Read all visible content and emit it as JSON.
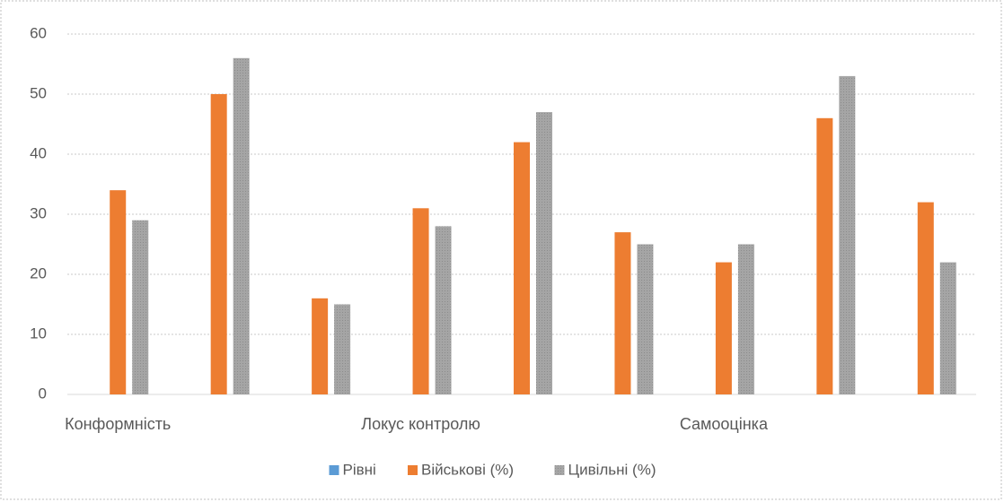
{
  "chart_data": {
    "type": "bar",
    "categories": [
      "Конформність",
      null,
      null,
      "Локус контролю",
      null,
      null,
      "Самооцінка",
      null,
      null
    ],
    "series": [
      {
        "name": "Рівні",
        "color": "#5b9bd5",
        "values": [
          null,
          null,
          null,
          null,
          null,
          null,
          null,
          null,
          null
        ]
      },
      {
        "name": "Військові (%)",
        "color": "#ed7d31",
        "values": [
          34,
          50,
          16,
          31,
          42,
          27,
          22,
          46,
          32
        ]
      },
      {
        "name": "Цивільні (%)",
        "color": "#a5a5a5",
        "values": [
          29,
          56,
          15,
          28,
          47,
          25,
          25,
          53,
          22
        ]
      }
    ],
    "ylim": [
      0,
      60
    ],
    "yticks": [
      0,
      10,
      20,
      30,
      40,
      50,
      60
    ],
    "grid": true,
    "legend": "bottom"
  }
}
